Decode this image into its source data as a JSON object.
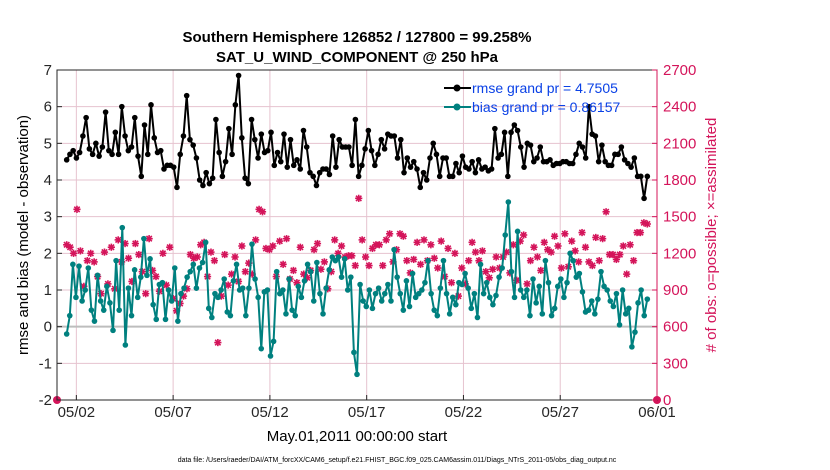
{
  "chart_data": {
    "type": "line",
    "title_line1": "Southern Hemisphere 126852 / 127800 = 99.258%",
    "title_line2": "SAT_U_WIND_COMPONENT @ 250 hPa",
    "xlabel": "May.01,2011 00:00:00 start",
    "ylabel_left": "rmse and bias (model - observation)",
    "ylabel_right": "# of obs: o=possible; ×=assimilated",
    "footer": "data file: /Users/raeder/DAI/ATM_forcXX/CAM6_setup/f.e21.FHIST_BGC.f09_025.CAM6assim.011/Diags_NTrS_2011-05/obs_diag_output.nc",
    "xlim": [
      0.5,
      31.5
    ],
    "ylim_left": [
      -2,
      7
    ],
    "ylim_right": [
      0,
      2700
    ],
    "x_ticks": [
      1.5,
      6.5,
      11.5,
      16.5,
      21.5,
      26.5,
      31.5
    ],
    "x_tick_labels": [
      "05/02",
      "05/07",
      "05/12",
      "05/17",
      "05/22",
      "05/27",
      "06/01"
    ],
    "y_ticks_left": [
      "-2",
      "-1",
      "0",
      "1",
      "2",
      "3",
      "4",
      "5",
      "6",
      "7"
    ],
    "y_ticks_right": [
      "0",
      "300",
      "600",
      "900",
      "1200",
      "1500",
      "1800",
      "2100",
      "2400",
      "2700"
    ],
    "zero_line": 0,
    "colors": {
      "rmse": "#000000",
      "bias": "#00807f",
      "obs": "#d4145a",
      "legend_text": "#0a41e6",
      "grid": "#e6c3cf",
      "zero": "#bdbdbd"
    },
    "series": [
      {
        "name": "rmse grand pr = 4.7505",
        "values": [
          4.55,
          4.7,
          4.8,
          4.6,
          4.75,
          5.2,
          5.7,
          4.85,
          4.7,
          5.0,
          4.65,
          4.9,
          5.85,
          4.8,
          4.7,
          5.3,
          4.7,
          6.0,
          5.2,
          4.8,
          4.9,
          5.7,
          4.65,
          4.1,
          5.5,
          4.7,
          6.05,
          5.15,
          4.75,
          4.8,
          4.3,
          4.4,
          4.4,
          4.35,
          3.8,
          4.7,
          5.2,
          6.3,
          5.1,
          4.95,
          4.6,
          4.0,
          3.85,
          4.2,
          3.9,
          4.05,
          5.65,
          4.75,
          4.1,
          4.5,
          5.4,
          4.7,
          6.05,
          6.85,
          5.15,
          4.05,
          3.9,
          5.65,
          5.1,
          4.6,
          5.25,
          4.75,
          4.8,
          5.3,
          4.4,
          4.75,
          4.5,
          5.25,
          4.35,
          5.1,
          4.4,
          4.55,
          4.3,
          5.35,
          4.9,
          4.2,
          4.1,
          3.85,
          4.2,
          4.3,
          4.3,
          4.15,
          5.2,
          4.35,
          5.1,
          4.9,
          4.9,
          4.9,
          4.4,
          5.65,
          4.1,
          4.4,
          4.85,
          5.35,
          4.8,
          4.4,
          4.7,
          5.1,
          4.85,
          5.25,
          5.2,
          5.2,
          4.6,
          5.1,
          4.2,
          4.6,
          4.35,
          4.5,
          4.3,
          3.8,
          4.2,
          4.0,
          4.6,
          5.0,
          4.7,
          4.1,
          4.6,
          4.6,
          4.1,
          4.1,
          4.45,
          4.2,
          4.65,
          4.35,
          4.3,
          4.5,
          4.2,
          4.55,
          4.3,
          4.35,
          4.25,
          4.3,
          5.4,
          4.6,
          4.7,
          5.3,
          4.1,
          5.3,
          5.5,
          5.35,
          4.9,
          4.35,
          5.0,
          4.95,
          4.5,
          4.6,
          4.9,
          4.5,
          4.5,
          4.55,
          4.4,
          4.45,
          4.45,
          4.5,
          4.5,
          4.45,
          4.45,
          4.7,
          5.0,
          4.9,
          4.6,
          6.0,
          5.25,
          5.2,
          4.5,
          4.95,
          4.5,
          4.4,
          4.4,
          4.7,
          4.7,
          4.9,
          4.55,
          4.45,
          4.35,
          4.6,
          4.1,
          4.1,
          3.5,
          4.1
        ]
      },
      {
        "name": "bias grand pr = 0.86157",
        "values": [
          -0.2,
          0.3,
          1.7,
          0.8,
          1.65,
          0.7,
          1.0,
          1.6,
          0.45,
          0.15,
          1.4,
          0.7,
          0.45,
          1.1,
          0.65,
          -0.1,
          1.8,
          0.45,
          2.7,
          -0.5,
          1.05,
          0.3,
          1.55,
          0.8,
          1.35,
          2.4,
          1.4,
          1.85,
          0.6,
          0.2,
          1.15,
          1.2,
          0.2,
          1.0,
          0.7,
          1.6,
          0.15,
          0.9,
          1.05,
          1.35,
          1.5,
          1.7,
          1.05,
          1.6,
          1.75,
          2.3,
          0.5,
          0.25,
          0.9,
          0.8,
          1.0,
          1.3,
          0.4,
          0.3,
          1.25,
          1.7,
          1.0,
          1.05,
          0.3,
          1.05,
          2.25,
          1.3,
          0.8,
          -0.6,
          0.95,
          1.0,
          -0.8,
          -0.4,
          1.5,
          0.9,
          1.0,
          0.35,
          1.3,
          0.45,
          0.3,
          1.1,
          0.8,
          1.25,
          1.7,
          1.5,
          0.7,
          1.75,
          0.9,
          0.35,
          1.05,
          1.55,
          1.9,
          1.8,
          1.9,
          1.35,
          1.85,
          1.0,
          1.35,
          -0.7,
          -1.3,
          1.15,
          0.7,
          0.55,
          1.0,
          0.5,
          0.9,
          1.05,
          0.7,
          0.9,
          1.15,
          0.7,
          2.1,
          1.35,
          0.9,
          0.45,
          1.25,
          0.55,
          1.45,
          0.8,
          0.9,
          1.0,
          1.2,
          1.8,
          0.9,
          0.45,
          0.3,
          1.05,
          1.8,
          0.9,
          0.35,
          0.8,
          0.6,
          1.2,
          1.15,
          1.45,
          1.05,
          0.5,
          0.9,
          0.25,
          1.7,
          0.9,
          1.2,
          0.8,
          0.6,
          0.85,
          1.35,
          1.6,
          2.5,
          3.4,
          1.5,
          0.8,
          2.6,
          1.0,
          0.8,
          1.0,
          0.3,
          1.3,
          0.65,
          1.1,
          0.35,
          1.8,
          1.2,
          0.3,
          0.5,
          1.1,
          1.3,
          0.8,
          1.2,
          2.0,
          1.8,
          1.35,
          1.45,
          0.95,
          0.4,
          0.45,
          0.7,
          0.35,
          0.75,
          1.5,
          1.1,
          1.0,
          0.7,
          0.55,
          0.9,
          0.05,
          1.0,
          0.35,
          0.5,
          -0.55,
          -0.15,
          0.65,
          1.0,
          0.3,
          0.75
        ]
      },
      {
        "name": "# of obs (possible/assimilated)",
        "axis": "right",
        "values": [
          1270,
          1250,
          1200,
          1560,
          1220,
          930,
          1140,
          1200,
          1130,
          1010,
          870,
          1210,
          950,
          1250,
          910,
          1310,
          1130,
          1280,
          1160,
          970,
          1280,
          1190,
          1050,
          870,
          1320,
          1060,
          1010,
          890,
          1200,
          940,
          1250,
          830,
          730,
          790,
          850,
          910,
          1190,
          1160,
          1170,
          1270,
          1290,
          1010,
          1210,
          1140,
          470,
          850,
          1190,
          940,
          1030,
          1170,
          970,
          1260,
          1050,
          1120,
          1030,
          1310,
          1560,
          1540,
          1240,
          1230,
          1260,
          1010,
          1300,
          1110,
          1320,
          990,
          1060,
          960,
          1250,
          1030,
          1000,
          1060,
          1230,
          1280,
          1070,
          1130,
          910,
          1050,
          1310,
          1200,
          1260,
          1170,
          1180,
          1180,
          1100,
          1650,
          1310,
          1170,
          1100,
          1240,
          1270,
          1270,
          1100,
          1310,
          1360,
          1130,
          1230,
          1360,
          1340,
          1140,
          1040,
          1150,
          1290,
          1110,
          1310,
          1140,
          1270,
          1160,
          1080,
          1300,
          1010,
          1240,
          960,
          1200,
          850,
          1080,
          950,
          1140,
          1290,
          1210,
          1140,
          1220,
          1050,
          1000,
          1070,
          1170,
          1080,
          1170,
          1210,
          1040,
          1270,
          980,
          1300,
          1350,
          950,
          1140,
          1250,
          1170,
          1060,
          1290,
          1230,
          1210,
          1340,
          1260,
          1080,
          1360,
          1090,
          1300,
          1220,
          1130,
          1370,
          1250,
          1130,
          1100,
          1330,
          1140,
          1320,
          1540,
          1190,
          1190,
          1150,
          1190,
          1260,
          1030,
          1270,
          1140,
          1370,
          1370,
          1450,
          1440
        ]
      }
    ],
    "legend": [
      {
        "label": "rmse grand pr = 4.7505",
        "marker": "filled-circle"
      },
      {
        "label": "bias grand pr = 0.86157",
        "marker": "filled-circle"
      }
    ]
  }
}
